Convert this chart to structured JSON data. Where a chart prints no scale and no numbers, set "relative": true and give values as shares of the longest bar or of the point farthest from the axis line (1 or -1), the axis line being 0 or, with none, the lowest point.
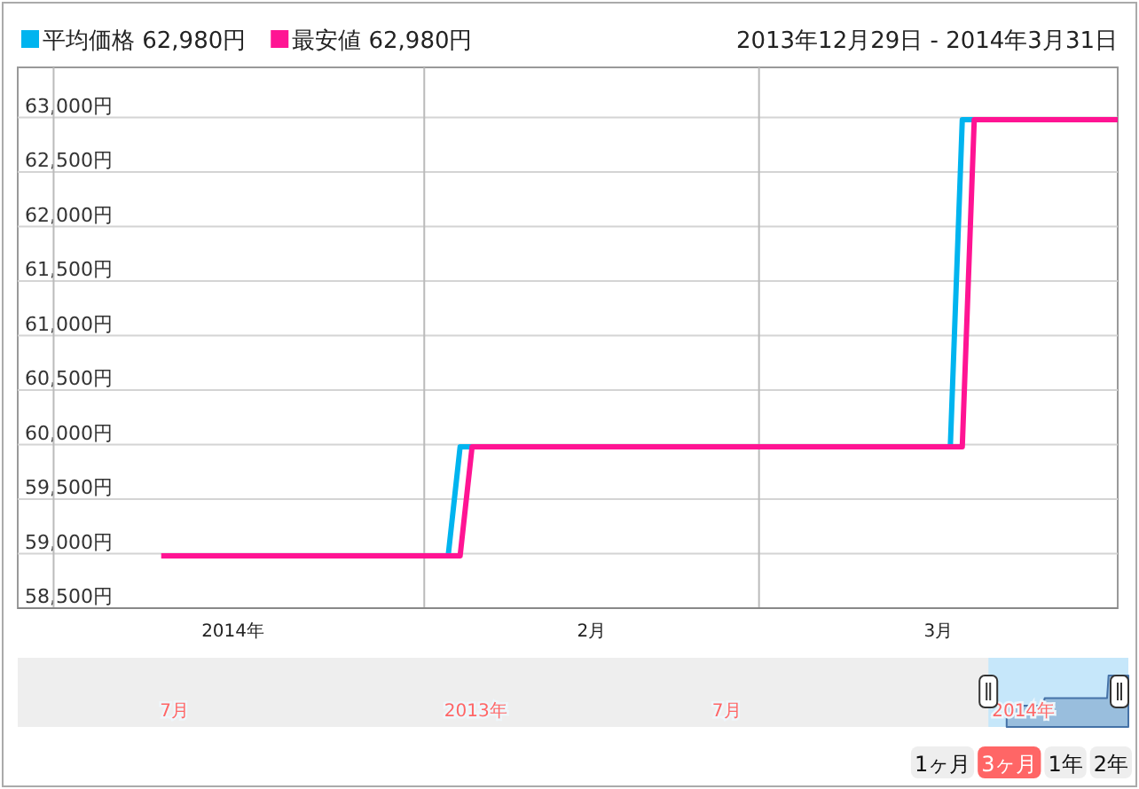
{
  "chart_data": [
    {
      "type": "line",
      "annotations": [
        "2013年12月29日 - 2014年3月31日"
      ],
      "series": [
        {
          "name": "平均価格 62,980円",
          "color": "#00b4ef",
          "x": [
            "2014-02-03",
            "2014-02-04",
            "2014-03-17",
            "2014-03-18",
            "2014-03-19"
          ],
          "values": [
            58980,
            59980,
            59980,
            62980,
            62980
          ]
        },
        {
          "name": "最安値 62,980円",
          "color": "#ff1493",
          "x": [
            "2014-01-10",
            "2014-02-04",
            "2014-02-05",
            "2014-03-18",
            "2014-03-19",
            "2014-03-31"
          ],
          "values": [
            58980,
            58980,
            59980,
            59980,
            62980,
            62980
          ]
        }
      ],
      "xlim": [
        "2013-12-29",
        "2014-03-31"
      ],
      "xticks": [
        {
          "value": "2014-01-01",
          "label": null
        },
        {
          "value": "2014-01-16",
          "label": "2014年"
        },
        {
          "value": "2014-02-01",
          "label": null
        },
        {
          "value": "2014-02-15",
          "label": "2月"
        },
        {
          "value": "2014-03-01",
          "label": null
        },
        {
          "value": "2014-03-16",
          "label": "3月"
        }
      ],
      "ylim": [
        58500,
        63460
      ],
      "yticks": [
        {
          "value": 58500,
          "label": "58,500円"
        },
        {
          "value": 59000,
          "label": "59,000円"
        },
        {
          "value": 59500,
          "label": "59,500円"
        },
        {
          "value": 60000,
          "label": "60,000円"
        },
        {
          "value": 60500,
          "label": "60,500円"
        },
        {
          "value": 61000,
          "label": "61,000円"
        },
        {
          "value": 61500,
          "label": "61,500円"
        },
        {
          "value": 62000,
          "label": "62,000円"
        },
        {
          "value": 62500,
          "label": "62,500円"
        },
        {
          "value": 63000,
          "label": "63,000円"
        }
      ],
      "grid": true,
      "legend": "top left",
      "line_style": "solid",
      "marker": "none"
    },
    {
      "type": "area",
      "relative": true,
      "series": [
        {
          "color": "#4572a7",
          "x": [
            "2014-01-10",
            "2014-02-03",
            "2014-02-04",
            "2014-03-17",
            "2014-03-18",
            "2014-03-31"
          ],
          "values": [
            0,
            0,
            0.25,
            0.25,
            1,
            1
          ]
        }
      ],
      "xlim": [
        "2012-03-31",
        "2014-03-31"
      ],
      "xticks": [
        {
          "value": "2012-07-12",
          "label": "7月"
        },
        {
          "value": "2013-01-26",
          "label": "2013年"
        },
        {
          "value": "2013-07-10",
          "label": "7月"
        },
        {
          "value": "2014-01-21",
          "label": "2014年"
        }
      ],
      "bands": [
        {
          "axis": "x",
          "from": "2013-12-29",
          "to": "2014-03-31",
          "color": "#c6e7fa"
        }
      ],
      "annotations": [
        "1ヶ月",
        "3ヶ月",
        "1年",
        "2年"
      ]
    }
  ]
}
